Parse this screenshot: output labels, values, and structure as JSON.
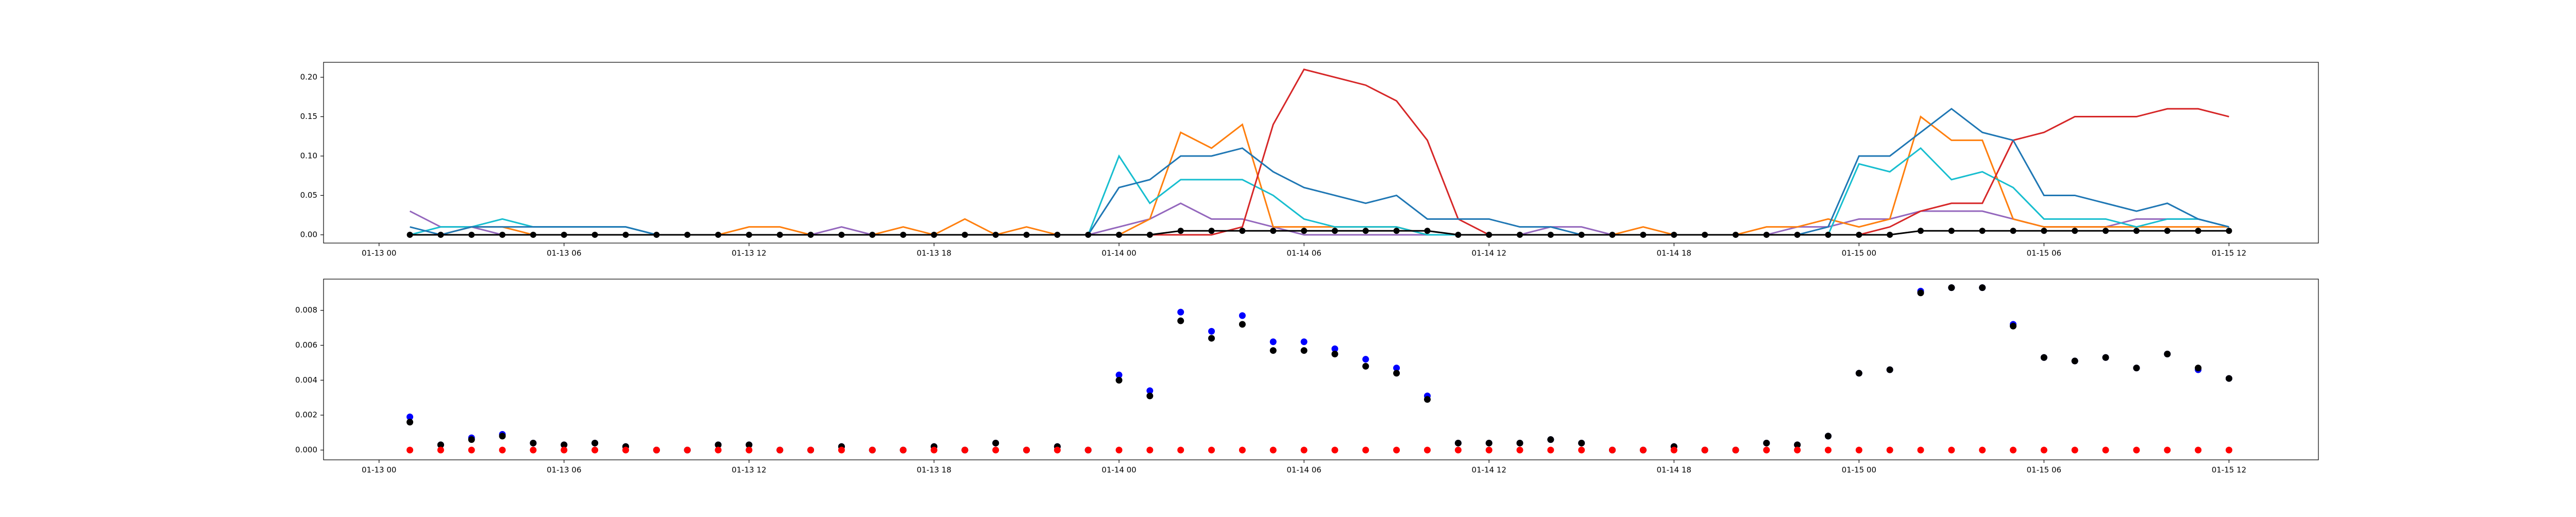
{
  "chart_data": [
    {
      "type": "line",
      "x": [
        1,
        2,
        3,
        4,
        5,
        6,
        7,
        8,
        9,
        10,
        11,
        12,
        13,
        14,
        15,
        16,
        17,
        18,
        19,
        20,
        21,
        22,
        23,
        24,
        25,
        26,
        27,
        28,
        29,
        30,
        31,
        32,
        33,
        34,
        35,
        36,
        37,
        38,
        39,
        40,
        41,
        42,
        43,
        44,
        45,
        46,
        47,
        48,
        49,
        50,
        51,
        52,
        53,
        54,
        55,
        56,
        57,
        58,
        59,
        60
      ],
      "xlim": [
        -1.8,
        62.9
      ],
      "xticks": [
        {
          "value": 0,
          "label": "01-13 00"
        },
        {
          "value": 6,
          "label": "01-13 06"
        },
        {
          "value": 12,
          "label": "01-13 12"
        },
        {
          "value": 18,
          "label": "01-13 18"
        },
        {
          "value": 24,
          "label": "01-14 00"
        },
        {
          "value": 30,
          "label": "01-14 06"
        },
        {
          "value": 36,
          "label": "01-14 12"
        },
        {
          "value": 42,
          "label": "01-14 18"
        },
        {
          "value": 48,
          "label": "01-15 00"
        },
        {
          "value": 54,
          "label": "01-15 06"
        },
        {
          "value": 60,
          "label": "01-15 12"
        }
      ],
      "ylim": [
        -0.0105,
        0.219
      ],
      "yticks": [
        {
          "value": 0,
          "label": "0.00"
        },
        {
          "value": 0.05,
          "label": "0.05"
        },
        {
          "value": 0.1,
          "label": "0.10"
        },
        {
          "value": 0.15,
          "label": "0.15"
        },
        {
          "value": 0.2,
          "label": "0.20"
        }
      ],
      "series": [
        {
          "color": "#9467bd",
          "values": [
            0.03,
            0.01,
            0.01,
            0,
            0,
            0,
            0,
            0,
            0,
            0,
            0,
            0,
            0,
            0,
            0.01,
            0,
            0,
            0,
            0,
            0,
            0,
            0,
            0,
            0.01,
            0.02,
            0.04,
            0.02,
            0.02,
            0.01,
            0,
            0,
            0,
            0,
            0,
            0,
            0,
            0,
            0.01,
            0.01,
            0,
            0,
            0,
            0,
            0,
            0,
            0.01,
            0.01,
            0.02,
            0.02,
            0.03,
            0.03,
            0.03,
            0.02,
            0.01,
            0.01,
            0.01,
            0.02,
            0.02,
            0.02,
            0.01
          ]
        },
        {
          "color": "#ff7f0e",
          "values": [
            0,
            0,
            0.01,
            0.01,
            0,
            0,
            0,
            0,
            0,
            0,
            0,
            0.01,
            0.01,
            0,
            0,
            0,
            0.01,
            0,
            0.02,
            0,
            0.01,
            0,
            0,
            0,
            0.02,
            0.13,
            0.11,
            0.14,
            0.01,
            0.01,
            0.01,
            0.01,
            0.01,
            0,
            0,
            0,
            0,
            0,
            0,
            0,
            0.01,
            0,
            0,
            0,
            0.01,
            0.01,
            0.02,
            0.01,
            0.02,
            0.15,
            0.12,
            0.12,
            0.02,
            0.01,
            0.01,
            0.01,
            0.01,
            0.01,
            0.01,
            0.01
          ]
        },
        {
          "color": "#17becf",
          "values": [
            0,
            0.01,
            0.01,
            0.02,
            0.01,
            0.01,
            0.01,
            0.01,
            0,
            0,
            0,
            0,
            0,
            0,
            0,
            0,
            0,
            0,
            0,
            0,
            0,
            0,
            0,
            0.1,
            0.04,
            0.07,
            0.07,
            0.07,
            0.05,
            0.02,
            0.01,
            0.01,
            0.01,
            0,
            0,
            0,
            0,
            0,
            0,
            0,
            0,
            0,
            0,
            0,
            0,
            0,
            0,
            0.09,
            0.08,
            0.11,
            0.07,
            0.08,
            0.06,
            0.02,
            0.02,
            0.02,
            0.01,
            0.02,
            0.02,
            0.01
          ]
        },
        {
          "color": "#d62728",
          "values": [
            0,
            0,
            0,
            0,
            0,
            0,
            0,
            0,
            0,
            0,
            0,
            0,
            0,
            0,
            0,
            0,
            0,
            0,
            0,
            0,
            0,
            0,
            0,
            0,
            0,
            0,
            0,
            0.01,
            0.14,
            0.21,
            0.2,
            0.19,
            0.17,
            0.12,
            0.02,
            0,
            0,
            0,
            0,
            0,
            0,
            0,
            0,
            0,
            0,
            0,
            0,
            0,
            0.01,
            0.03,
            0.04,
            0.04,
            0.12,
            0.13,
            0.15,
            0.15,
            0.15,
            0.16,
            0.16,
            0.15
          ]
        },
        {
          "color": "#1f77b4",
          "values": [
            0.01,
            0,
            0.01,
            0.01,
            0.01,
            0.01,
            0.01,
            0.01,
            0,
            0,
            0,
            0,
            0,
            0,
            0,
            0,
            0,
            0,
            0,
            0,
            0,
            0,
            0,
            0.06,
            0.07,
            0.1,
            0.1,
            0.11,
            0.08,
            0.06,
            0.05,
            0.04,
            0.05,
            0.02,
            0.02,
            0.02,
            0.01,
            0.01,
            0,
            0,
            0,
            0,
            0,
            0,
            0,
            0,
            0.01,
            0.1,
            0.1,
            0.13,
            0.16,
            0.13,
            0.12,
            0.05,
            0.05,
            0.04,
            0.03,
            0.04,
            0.02,
            0.01
          ]
        },
        {
          "color": "#000000",
          "marker": true,
          "values": [
            0,
            0,
            0,
            0,
            0,
            0,
            0,
            0,
            0,
            0,
            0,
            0,
            0,
            0,
            0,
            0,
            0,
            0,
            0,
            0,
            0,
            0,
            0,
            0,
            0,
            0.005,
            0.005,
            0.005,
            0.005,
            0.005,
            0.005,
            0.005,
            0.005,
            0.005,
            0,
            0,
            0,
            0,
            0,
            0,
            0,
            0,
            0,
            0,
            0,
            0,
            0,
            0,
            0,
            0.005,
            0.005,
            0.005,
            0.005,
            0.005,
            0.005,
            0.005,
            0.005,
            0.005,
            0.005,
            0.005
          ]
        }
      ]
    },
    {
      "type": "scatter",
      "x": [
        1,
        2,
        3,
        4,
        5,
        6,
        7,
        8,
        9,
        10,
        11,
        12,
        13,
        14,
        15,
        16,
        17,
        18,
        19,
        20,
        21,
        22,
        23,
        24,
        25,
        26,
        27,
        28,
        29,
        30,
        31,
        32,
        33,
        34,
        35,
        36,
        37,
        38,
        39,
        40,
        41,
        42,
        43,
        44,
        45,
        46,
        47,
        48,
        49,
        50,
        51,
        52,
        53,
        54,
        55,
        56,
        57,
        58,
        59,
        60
      ],
      "xlim": [
        -1.8,
        62.9
      ],
      "xticks": [
        {
          "value": 0,
          "label": "01-13 00"
        },
        {
          "value": 6,
          "label": "01-13 06"
        },
        {
          "value": 12,
          "label": "01-13 12"
        },
        {
          "value": 18,
          "label": "01-13 18"
        },
        {
          "value": 24,
          "label": "01-14 00"
        },
        {
          "value": 30,
          "label": "01-14 06"
        },
        {
          "value": 36,
          "label": "01-14 12"
        },
        {
          "value": 42,
          "label": "01-14 18"
        },
        {
          "value": 48,
          "label": "01-15 00"
        },
        {
          "value": 54,
          "label": "01-15 06"
        },
        {
          "value": 60,
          "label": "01-15 12"
        }
      ],
      "ylim": [
        -0.00056,
        0.00979
      ],
      "yticks": [
        {
          "value": 0,
          "label": "0.000"
        },
        {
          "value": 0.002,
          "label": "0.002"
        },
        {
          "value": 0.004,
          "label": "0.004"
        },
        {
          "value": 0.006,
          "label": "0.006"
        },
        {
          "value": 0.008,
          "label": "0.008"
        }
      ],
      "series": [
        {
          "color": "#0000ff",
          "values": [
            0.0019,
            0.0003,
            0.0007,
            0.0009,
            0.0004,
            0.0003,
            0.0004,
            0.0002,
            0,
            0,
            0.0003,
            0.0003,
            0,
            0,
            0.0002,
            0,
            0,
            0.0002,
            0,
            0.0004,
            0,
            0.0002,
            0,
            0.0043,
            0.0034,
            0.0079,
            0.0068,
            0.0077,
            0.0062,
            0.0062,
            0.0058,
            0.0052,
            0.0047,
            0.0031,
            0.0004,
            0.0004,
            0.0004,
            0.0006,
            0.0004,
            0,
            0,
            0.0002,
            0,
            0,
            0.0004,
            0.0003,
            0.0008,
            0.0044,
            0.0046,
            0.0091,
            0.0093,
            0.0093,
            0.0072,
            0.0053,
            0.0051,
            0.0053,
            0.0047,
            0.0055,
            0.0046,
            0.0041
          ]
        },
        {
          "color": "#000000",
          "values": [
            0.0016,
            0.0003,
            0.0006,
            0.0008,
            0.0004,
            0.0003,
            0.0004,
            0.0002,
            0,
            0,
            0.0003,
            0.0003,
            0,
            0,
            0.0002,
            0,
            0,
            0.0002,
            0,
            0.0004,
            0,
            0.0002,
            0,
            0.004,
            0.0031,
            0.0074,
            0.0064,
            0.0072,
            0.0057,
            0.0057,
            0.0055,
            0.0048,
            0.0044,
            0.0029,
            0.0004,
            0.0004,
            0.0004,
            0.0006,
            0.0004,
            0,
            0,
            0.0002,
            0,
            0,
            0.0004,
            0.0003,
            0.0008,
            0.0044,
            0.0046,
            0.009,
            0.0093,
            0.0093,
            0.0071,
            0.0053,
            0.0051,
            0.0053,
            0.0047,
            0.0055,
            0.0047,
            0.0041
          ]
        },
        {
          "color": "#ff0000",
          "values": [
            0,
            0,
            0,
            0,
            0,
            0,
            0,
            0,
            0,
            0,
            0,
            0,
            0,
            0,
            0,
            0,
            0,
            0,
            0,
            0,
            0,
            0,
            0,
            0,
            0,
            0,
            0,
            0,
            0,
            0,
            0,
            0,
            0,
            0,
            0,
            0,
            0,
            0,
            0,
            0,
            0,
            0,
            0,
            0,
            0,
            0,
            0,
            0,
            0,
            0,
            0,
            0,
            0,
            0,
            0,
            0,
            0,
            0,
            0,
            0
          ]
        }
      ]
    }
  ]
}
